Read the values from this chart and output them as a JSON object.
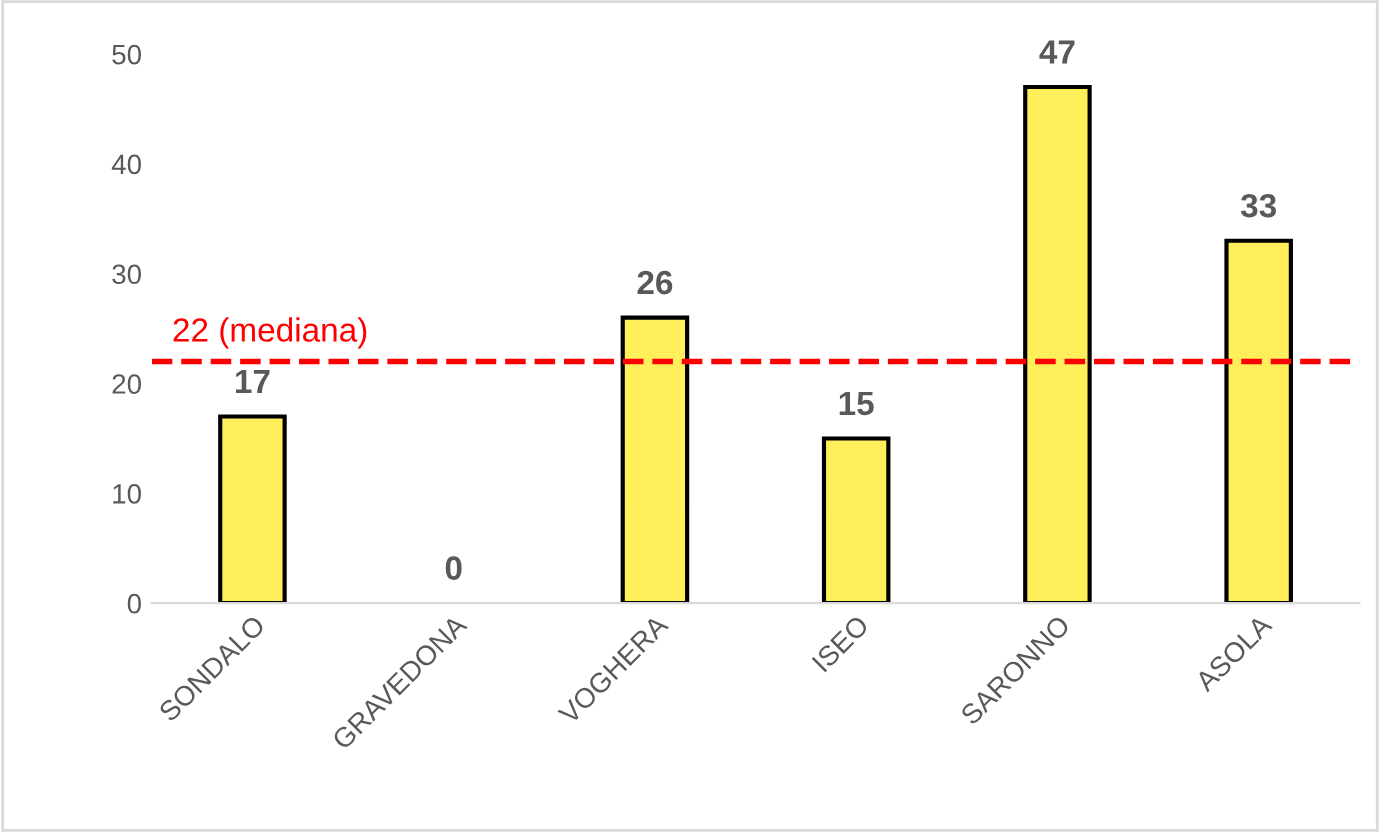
{
  "chart_data": {
    "type": "bar",
    "categories": [
      "SONDALO",
      "GRAVEDONA",
      "VOGHERA",
      "ISEO",
      "SARONNO",
      "ASOLA"
    ],
    "values": [
      17,
      0,
      26,
      15,
      47,
      33
    ],
    "color": "#ffef5a",
    "ylim": [
      0,
      50
    ],
    "yticks": [
      0,
      10,
      20,
      30,
      40,
      50
    ],
    "grid": false,
    "data_labels": true,
    "ref_lines": [
      {
        "axis": "y",
        "value": 22,
        "label": "22 (mediana)",
        "color": "#ff0000",
        "line_style": "dashed"
      }
    ]
  }
}
